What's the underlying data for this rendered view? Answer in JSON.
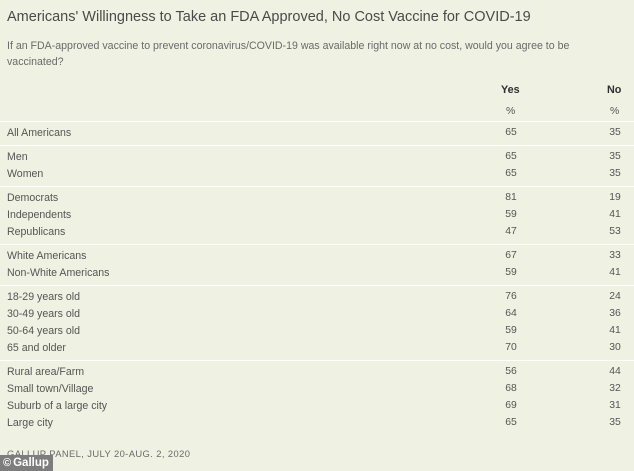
{
  "title": "Americans' Willingness to Take an FDA Approved, No Cost Vaccine for COVID-19",
  "subtitle": "If an FDA-approved vaccine to prevent coronavirus/COVID-19 was available right now at no cost, would you agree to be vaccinated?",
  "columns": {
    "yes": "Yes",
    "no": "No",
    "unit": "%"
  },
  "rows": [
    {
      "label": "All Americans",
      "yes": "65",
      "no": "35"
    },
    {
      "label": "Men",
      "yes": "65",
      "no": "35"
    },
    {
      "label": "Women",
      "yes": "65",
      "no": "35"
    },
    {
      "label": "Democrats",
      "yes": "81",
      "no": "19"
    },
    {
      "label": "Independents",
      "yes": "59",
      "no": "41"
    },
    {
      "label": "Republicans",
      "yes": "47",
      "no": "53"
    },
    {
      "label": "White Americans",
      "yes": "67",
      "no": "33"
    },
    {
      "label": "Non-White Americans",
      "yes": "59",
      "no": "41"
    },
    {
      "label": "18-29 years old",
      "yes": "76",
      "no": "24"
    },
    {
      "label": "30-49 years old",
      "yes": "64",
      "no": "36"
    },
    {
      "label": "50-64 years old",
      "yes": "59",
      "no": "41"
    },
    {
      "label": "65 and older",
      "yes": "70",
      "no": "30"
    },
    {
      "label": "Rural area/Farm",
      "yes": "56",
      "no": "44"
    },
    {
      "label": "Small town/Village",
      "yes": "68",
      "no": "32"
    },
    {
      "label": "Suburb of a large city",
      "yes": "69",
      "no": "31"
    },
    {
      "label": "Large city",
      "yes": "65",
      "no": "35"
    }
  ],
  "source": "GALLUP PANEL, JULY 20-AUG. 2, 2020",
  "logo": {
    "text": "Gallup",
    "icon": "copyright-icon",
    "icon_glyph": "©"
  }
}
